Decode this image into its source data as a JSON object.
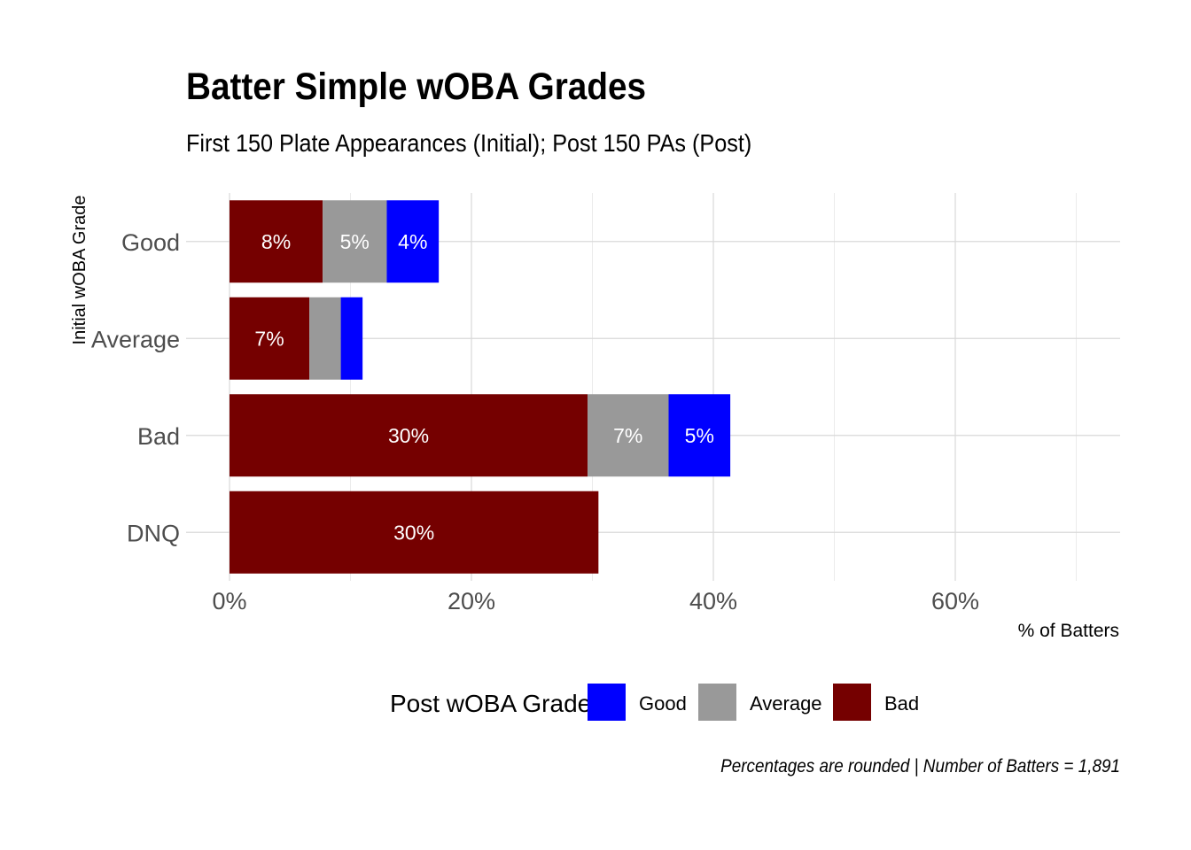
{
  "title": "Batter Simple wOBA Grades",
  "subtitle": "First 150 Plate Appearances (Initial); Post 150 PAs (Post)",
  "caption": "Percentages are rounded | Number of Batters = 1,891",
  "chart_data": {
    "type": "bar",
    "orientation": "horizontal",
    "stacked": true,
    "xlabel": "% of Batters",
    "ylabel": "Initial wOBA Grade",
    "xlim": [
      0,
      73
    ],
    "x_ticks": [
      "0%",
      "20%",
      "40%",
      "60%"
    ],
    "categories": [
      "Good",
      "Average",
      "Bad",
      "DNQ"
    ],
    "legend_title": "Post wOBA Grade",
    "legend_position": "bottom",
    "legend_order": [
      "Good",
      "Average",
      "Bad"
    ],
    "grid": true,
    "series": [
      {
        "name": "Bad",
        "color": "#750000",
        "values": [
          7.7,
          6.6,
          29.6,
          30.5
        ],
        "labels": [
          "8%",
          "7%",
          "30%",
          "30%"
        ]
      },
      {
        "name": "Average",
        "color": "#999999",
        "values": [
          5.3,
          2.6,
          6.7,
          0
        ],
        "labels": [
          "5%",
          "",
          "7%",
          ""
        ]
      },
      {
        "name": "Good",
        "color": "#0000ff",
        "values": [
          4.3,
          1.8,
          5.1,
          0
        ],
        "labels": [
          "4%",
          "",
          "5%",
          ""
        ]
      }
    ]
  }
}
